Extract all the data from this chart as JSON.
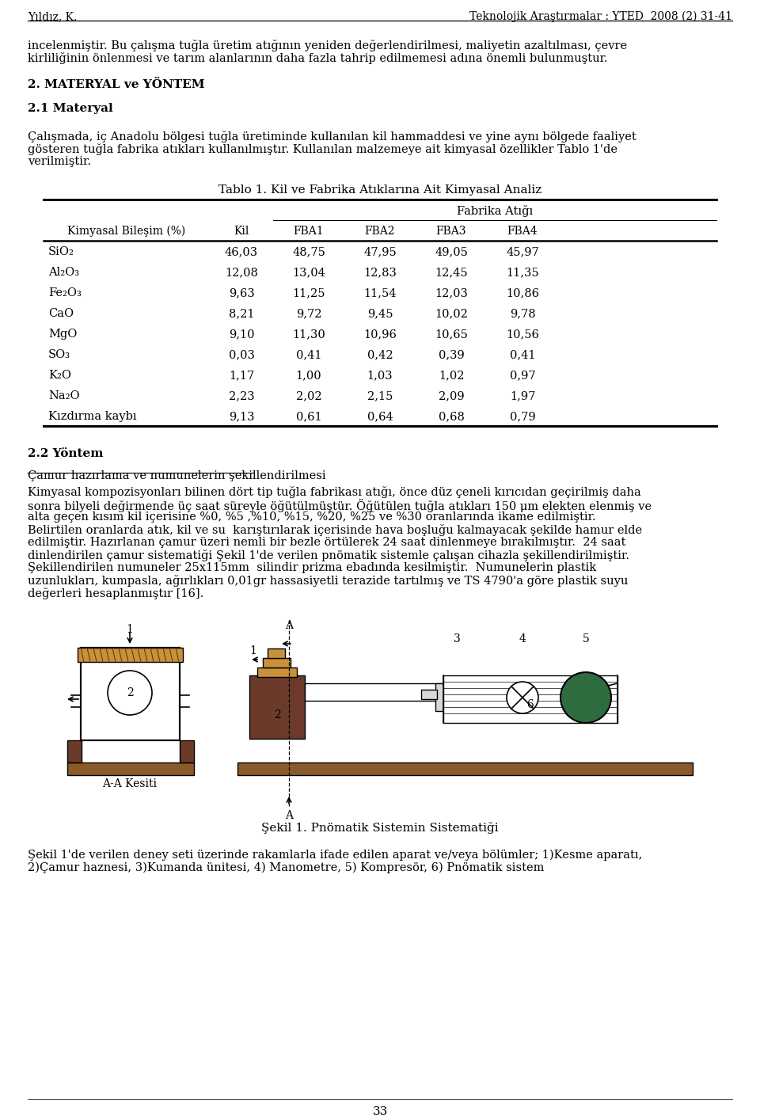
{
  "header_left": "Yıldız, K.",
  "header_right": "Teknolojik Araştırmalar : YTED  2008 (2) 31-41",
  "para1_line1": "incelenmiştir. Bu çalışma tuğla üretim atığının yeniden değerlendirilmesi, maliyetin azaltılması, çevre",
  "para1_line2": "kirliliğinin önlenmesi ve tarım alanlarının daha fazla tahrip edilmemesi adına önemli bulunmuştur.",
  "section_title": "2. MATERYAL ve YÖNTEM",
  "subsection_title": "2.1 Materyal",
  "para2_line1": "Çalışmada, iç Anadolu bölgesi tuğla üretiminde kullanılan kil hammaddesi ve yine aynı bölgede faaliyet",
  "para2_line2": "gösteren tuğla fabrika atıkları kullanılmıştır. Kullanılan malzemeye ait kimyasal özellikler Tablo 1'de",
  "para2_line3": "verilmiştir.",
  "table_title": "Tablo 1. Kil ve Fabrika Atıklarına Ait Kimyasal Analiz",
  "table_fabrika_header": "Fabrika Atığı",
  "col0_header": "Kimyasal Bileşim (%)",
  "col1_header": "Kil",
  "col2_header": "FBA1",
  "col3_header": "FBA2",
  "col4_header": "FBA3",
  "col5_header": "FBA4",
  "row0": [
    "SiO₂",
    "46,03",
    "48,75",
    "47,95",
    "49,05",
    "45,97"
  ],
  "row1": [
    "Al₂O₃",
    "12,08",
    "13,04",
    "12,83",
    "12,45",
    "11,35"
  ],
  "row2": [
    "Fe₂O₃",
    "9,63",
    "11,25",
    "11,54",
    "12,03",
    "10,86"
  ],
  "row3": [
    "CaO",
    "8,21",
    "9,72",
    "9,45",
    "10,02",
    "9,78"
  ],
  "row4": [
    "MgO",
    "9,10",
    "11,30",
    "10,96",
    "10,65",
    "10,56"
  ],
  "row5": [
    "SO₃",
    "0,03",
    "0,41",
    "0,42",
    "0,39",
    "0,41"
  ],
  "row6": [
    "K₂O",
    "1,17",
    "1,00",
    "1,03",
    "1,02",
    "0,97"
  ],
  "row7": [
    "Na₂O",
    "2,23",
    "2,02",
    "2,15",
    "2,09",
    "1,97"
  ],
  "row8": [
    "Kızdırma kaybı",
    "9,13",
    "0,61",
    "0,64",
    "0,68",
    "0,79"
  ],
  "section2_title": "2.2 Yöntem",
  "underline_title": "Çamur hazırlama ve numunelerin şekillendirilmesi",
  "para3_lines": [
    "Kimyasal kompozisyonları bilinen dört tip tuğla fabrikası atığı, önce düz çeneli kırıcıdan geçirilmiş daha",
    "sonra bilyeli değirmende üç saat süreyle öğütülmüştür. Öğütülen tuğla atıkları 150 μm elekten elenmiş ve",
    "alta geçen kısım kil içerisine %0, %5 ,%10, %15, %20, %25 ve %30 oranlarında ikame edilmiştir.",
    "Belirtilen oranlarda atık, kil ve su  karıştırılarak içerisinde hava boşluğu kalmayacak şekilde hamur elde",
    "edilmiştir. Hazırlanan çamur üzeri nemli bir bezle örtülerek 24 saat dinlenmeye bırakılmıştır.  24 saat",
    "dinlendirilen çamur sistematiği Şekil 1'de verilen pnömatik sistemle çalışan cihazla şekillendirilmiştir.",
    "Şekillendirilen numuneler 25x115mm  silindir prizma ebadında kesilmiştir.  Numunelerin plastik",
    "uzunlukları, kumpasla, ağırlıkları 0,01gr hassasiyetli terazide tartılmış ve TS 4790'a göre plastik suyu",
    "değerleri hesaplanmıştır [16]."
  ],
  "figure_caption": "Şekil 1. Pnömatik Sistemin Sistematiği",
  "para4_line1": "Şekil 1'de verilen deney seti üzerinde rakamlarla ifade edilen aparat ve/veya bölümler; 1)Kesme aparatı,",
  "para4_line2": "2)Çamur haznesi, 3)Kumanda ünitesi, 4) Manometre, 5) Kompresör, 6) Pnömatik sistem",
  "page_number": "33",
  "brown_dark": "#6B3A2A",
  "brown_mid": "#8B5A2B",
  "brown_light": "#C8913A",
  "green_dark": "#2E6B3E",
  "background_color": "#ffffff"
}
